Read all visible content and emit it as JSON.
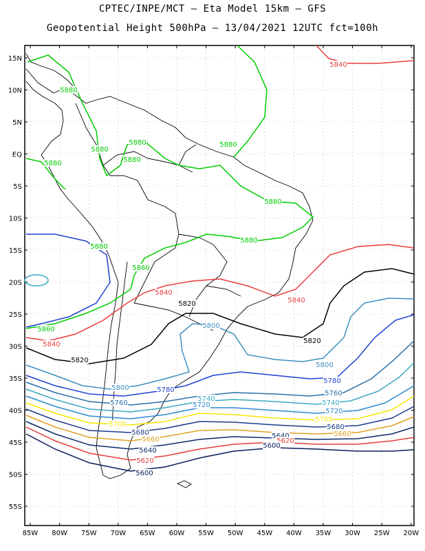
{
  "header": {
    "line1": "CPTEC/INPE/MCT –  Eta Model 15km – GFS",
    "line2": "Geopotential Height 500hPa – 13/04/2021 12UTC fct=100h"
  },
  "axes": {
    "lat_ticks": [
      "15N",
      "10N",
      "5N",
      "EQ",
      "5S",
      "10S",
      "15S",
      "20S",
      "25S",
      "30S",
      "35S",
      "40S",
      "45S",
      "50S",
      "55S"
    ],
    "lon_ticks": [
      "85W",
      "80W",
      "75W",
      "70W",
      "65W",
      "60W",
      "55W",
      "50W",
      "45W",
      "40W",
      "35W",
      "30W",
      "25W",
      "20W"
    ]
  },
  "contours": [
    {
      "value": 5880,
      "color": "#00cc00",
      "label": "5880"
    },
    {
      "value": 5860,
      "color": "#00cc00",
      "label": "5860"
    },
    {
      "value": 5840,
      "color": "#e83c3c",
      "label": "5840"
    },
    {
      "value": 5820,
      "color": "#000000",
      "label": "5820"
    },
    {
      "value": 5800,
      "color": "#3d8fc0",
      "label": "5800"
    },
    {
      "value": 5780,
      "color": "#1f3fd0",
      "label": "5780"
    },
    {
      "value": 5760,
      "color": "#2a6fa8",
      "label": "5760"
    },
    {
      "value": 5740,
      "color": "#3aa8c0",
      "label": "5740"
    },
    {
      "value": 5720,
      "color": "#2a8ad0",
      "label": "5720"
    },
    {
      "value": 5700,
      "color": "#f5e600",
      "label": "5700"
    },
    {
      "value": 5680,
      "color": "#1a3a8a",
      "label": "5680"
    },
    {
      "value": 5660,
      "color": "#e0a020",
      "label": "5660"
    },
    {
      "value": 5640,
      "color": "#0a2a6a",
      "label": "5640"
    },
    {
      "value": 5620,
      "color": "#e83c3c",
      "label": "5620"
    },
    {
      "value": 5600,
      "color": "#0a1a5a",
      "label": "5600"
    }
  ]
}
